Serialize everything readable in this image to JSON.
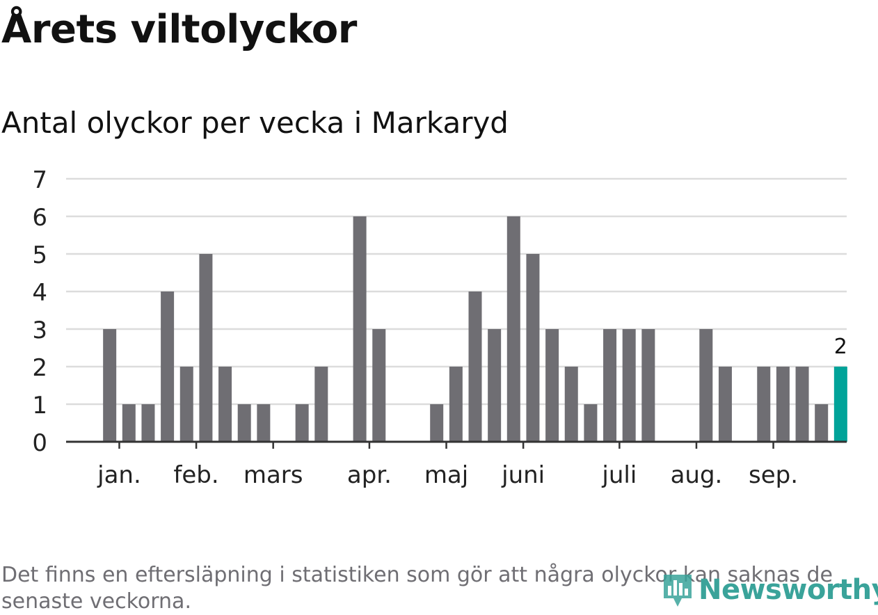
{
  "title": "Årets viltolyckor",
  "subtitle": "Antal olyckor per vecka i Markaryd",
  "footnote": "Det finns en eftersläpning i statistiken som gör att några olyckor kan saknas de senaste veckorna.",
  "logo_text": "Newsworthy",
  "colors": {
    "bar": "#6f6e73",
    "highlight": "#00a399",
    "grid": "#dcdcdc",
    "axis": "#333333",
    "logo": "#3aa39a"
  },
  "chart_data": {
    "type": "bar",
    "title": "Antal olyckor per vecka i Markaryd",
    "xlabel": "",
    "ylabel": "",
    "ylim": [
      0,
      7
    ],
    "yticks": [
      0,
      1,
      2,
      3,
      4,
      5,
      6,
      7
    ],
    "grid": true,
    "x": [
      1,
      2,
      3,
      4,
      5,
      6,
      7,
      8,
      9,
      10,
      11,
      12,
      13,
      14,
      15,
      16,
      17,
      18,
      19,
      20,
      21,
      22,
      23,
      24,
      25,
      26,
      27,
      28,
      29,
      30,
      31,
      32,
      33,
      34,
      35,
      36,
      37,
      38,
      39,
      40
    ],
    "values": [
      0,
      3,
      1,
      1,
      4,
      2,
      5,
      2,
      1,
      1,
      0,
      1,
      2,
      0,
      6,
      3,
      0,
      0,
      1,
      2,
      4,
      3,
      6,
      5,
      3,
      2,
      1,
      3,
      3,
      3,
      0,
      0,
      3,
      2,
      0,
      2,
      2,
      2,
      1,
      2
    ],
    "highlight_index": 39,
    "highlight_label": "2",
    "month_labels": [
      {
        "label": "jan.",
        "week": 3.0
      },
      {
        "label": "feb.",
        "week": 7.0
      },
      {
        "label": "mars",
        "week": 11.0
      },
      {
        "label": "apr.",
        "week": 16.0
      },
      {
        "label": "maj",
        "week": 20.0
      },
      {
        "label": "juni",
        "week": 24.0
      },
      {
        "label": "juli",
        "week": 29.0
      },
      {
        "label": "aug.",
        "week": 33.0
      },
      {
        "label": "sep.",
        "week": 37.0
      }
    ]
  }
}
